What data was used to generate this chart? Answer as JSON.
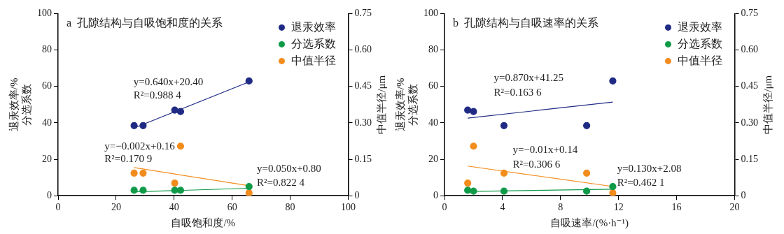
{
  "chart_data": [
    {
      "type": "scatter",
      "xlabel": "自吸饱和度/%",
      "ylabel": "退汞效率/%\n分选系数",
      "y2label": "中值半径/μm",
      "xlim": [
        0,
        100
      ],
      "xticks": [
        0,
        20,
        40,
        60,
        80,
        100
      ],
      "ylim": [
        0,
        100
      ],
      "yticks": [
        0,
        20,
        40,
        60,
        80,
        100
      ],
      "y2lim": [
        0,
        0.75
      ],
      "y2ticks": [
        {
          "value": 0,
          "label": "0"
        },
        {
          "value": 0.15,
          "label": "0.15"
        },
        {
          "value": 0.3,
          "label": "0.30"
        },
        {
          "value": 0.45,
          "label": "0.45"
        },
        {
          "value": 0.6,
          "label": "0.60"
        },
        {
          "value": 0.75,
          "label": "0.75"
        }
      ],
      "legend": "top right",
      "marker": "circle",
      "series": [
        {
          "name": "退汞效率",
          "color": "#1f2a84",
          "x": [
            26.2,
            29.3,
            40.2,
            42.2,
            65.8
          ],
          "values": [
            38.5,
            38.5,
            47,
            46.2,
            63
          ]
        },
        {
          "name": "分选系数",
          "color": "#0f9a48",
          "x": [
            26.2,
            29.3,
            40.2,
            42.2,
            65.8
          ],
          "values": [
            3,
            3,
            3,
            3,
            5
          ]
        },
        {
          "name": "中值半径",
          "color": "#f28c1c",
          "axis": "y2",
          "x": [
            26.2,
            29.3,
            40.2,
            42.2,
            65.8
          ],
          "values": [
            0.093,
            0.093,
            0.052,
            0.204,
            0.012
          ]
        },
        {
          "type": "line",
          "marker": "none",
          "color": "#1f2a84",
          "x": [
            26.2,
            65.8
          ],
          "values": [
            37.2,
            62.5
          ]
        },
        {
          "type": "line",
          "marker": "none",
          "color": "#0f9a48",
          "x": [
            26.2,
            65.8
          ],
          "values": [
            2.1,
            4.1
          ]
        },
        {
          "type": "line",
          "marker": "none",
          "color": "#f28c1c",
          "axis": "y2",
          "x": [
            26.2,
            65.8
          ],
          "values": [
            0.116,
            0.041
          ]
        }
      ],
      "annotations": [
        "a  孔隙结构与自吸饱和度的关系",
        "y=0.640x+20.40",
        "R²=0.988 4",
        "y=−0.002x+0.16",
        "R²=0.170 9",
        "y=0.050x+0.80",
        "R²=0.822 4"
      ]
    },
    {
      "type": "scatter",
      "xlabel": "自吸速率/(%·h⁻¹)",
      "ylabel": "退汞效率/%\n分选系数",
      "y2label": "中值半径/μm",
      "xlim": [
        0,
        20
      ],
      "xticks": [
        0,
        4,
        8,
        12,
        16,
        20
      ],
      "ylim": [
        0,
        100
      ],
      "yticks": [
        0,
        20,
        40,
        60,
        80,
        100
      ],
      "y2lim": [
        0,
        0.75
      ],
      "y2ticks": [
        {
          "value": 0,
          "label": "0"
        },
        {
          "value": 0.15,
          "label": "0.15"
        },
        {
          "value": 0.3,
          "label": "0.30"
        },
        {
          "value": 0.45,
          "label": "0.45"
        },
        {
          "value": 0.6,
          "label": "0.60"
        },
        {
          "value": 0.75,
          "label": "0.75"
        }
      ],
      "legend": "top right",
      "marker": "circle",
      "series": [
        {
          "name": "退汞效率",
          "color": "#1f2a84",
          "x": [
            1.6,
            2.0,
            4.1,
            9.8,
            11.6
          ],
          "values": [
            47,
            46.2,
            38.5,
            38.5,
            63
          ]
        },
        {
          "name": "分选系数",
          "color": "#0f9a48",
          "x": [
            1.6,
            2.0,
            4.1,
            9.8,
            11.6
          ],
          "values": [
            3,
            2.5,
            2.5,
            2.5,
            5
          ]
        },
        {
          "name": "中值半径",
          "color": "#f28c1c",
          "axis": "y2",
          "x": [
            1.6,
            2.0,
            4.1,
            9.8,
            11.6
          ],
          "values": [
            0.052,
            0.204,
            0.093,
            0.093,
            0.012
          ]
        },
        {
          "type": "line",
          "marker": "none",
          "color": "#1f2a84",
          "x": [
            1.6,
            11.6
          ],
          "values": [
            42.6,
            51.4
          ]
        },
        {
          "type": "line",
          "marker": "none",
          "color": "#0f9a48",
          "x": [
            1.6,
            11.6
          ],
          "values": [
            2.3,
            3.6
          ]
        },
        {
          "type": "line",
          "marker": "none",
          "color": "#f28c1c",
          "axis": "y2",
          "x": [
            1.6,
            11.6
          ],
          "values": [
            0.122,
            0.038
          ]
        }
      ],
      "annotations": [
        "b  孔隙结构与自吸速率的关系",
        "y=0.870x+41.25",
        "R²=0.163 6",
        "y=−0.01x+0.14",
        "R²=0.306 6",
        "y=0.130x+2.08",
        "R²=0.462 1"
      ]
    }
  ]
}
